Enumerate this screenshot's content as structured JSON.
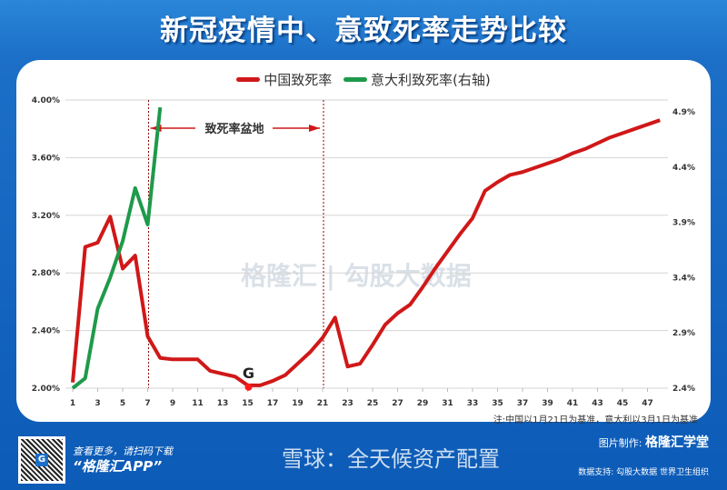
{
  "title": "新冠疫情中、意致死率走势比较",
  "watermark": "格隆汇 | 勾股大数据",
  "note": "注:中国以1月21日为基准，意大利以3月1日为基准",
  "annotation": {
    "label": "致死率盆地",
    "marker": "G"
  },
  "footer": {
    "scan_text": "查看更多，请扫码下载",
    "app_name": "“格隆汇APP”",
    "credit_label": "图片制作:",
    "credit_name": "格隆汇学堂",
    "data_source": "数据支持: 勾股大数据 世界卫生组织",
    "xueqiu_watermark": "雪球：全天候资产配置"
  },
  "chart_data": {
    "type": "line",
    "title": "新冠疫情中、意致死率走势比较",
    "x_ticks": [
      1,
      3,
      5,
      7,
      9,
      11,
      13,
      15,
      17,
      19,
      21,
      23,
      25,
      27,
      29,
      31,
      33,
      35,
      37,
      39,
      41,
      43,
      45,
      47
    ],
    "left_axis": {
      "ylim": [
        2.0,
        4.0
      ],
      "ticks": [
        "2.00%",
        "2.40%",
        "2.80%",
        "3.20%",
        "3.60%",
        "4.00%"
      ]
    },
    "right_axis": {
      "ylim": [
        2.4,
        4.9
      ],
      "ticks": [
        "2.4%",
        "2.9%",
        "3.4%",
        "3.9%",
        "4.4%",
        "4.9%"
      ]
    },
    "grid": true,
    "legend_position": "top",
    "basin_range": [
      7,
      21
    ],
    "series": [
      {
        "name": "中国致死率",
        "axis": "left",
        "color": "#d01818",
        "values": [
          2.04,
          2.98,
          3.01,
          3.19,
          2.83,
          2.92,
          2.36,
          2.21,
          2.2,
          2.2,
          2.2,
          2.12,
          2.1,
          2.08,
          2.02,
          2.02,
          2.05,
          2.09,
          2.17,
          2.25,
          2.35,
          2.49,
          2.15,
          2.17,
          2.3,
          2.44,
          2.52,
          2.58,
          2.7,
          2.83,
          2.95,
          3.07,
          3.18,
          3.37,
          3.43,
          3.48,
          3.5,
          3.53,
          3.56,
          3.59,
          3.63,
          3.66,
          3.7,
          3.74,
          3.77,
          3.8,
          3.83,
          3.86
        ]
      },
      {
        "name": "意大利致死率(右轴)",
        "axis": "right",
        "color": "#1e9a4a",
        "values": [
          2.4,
          2.49,
          3.12,
          3.4,
          3.73,
          4.21,
          3.88,
          4.94
        ]
      }
    ]
  }
}
